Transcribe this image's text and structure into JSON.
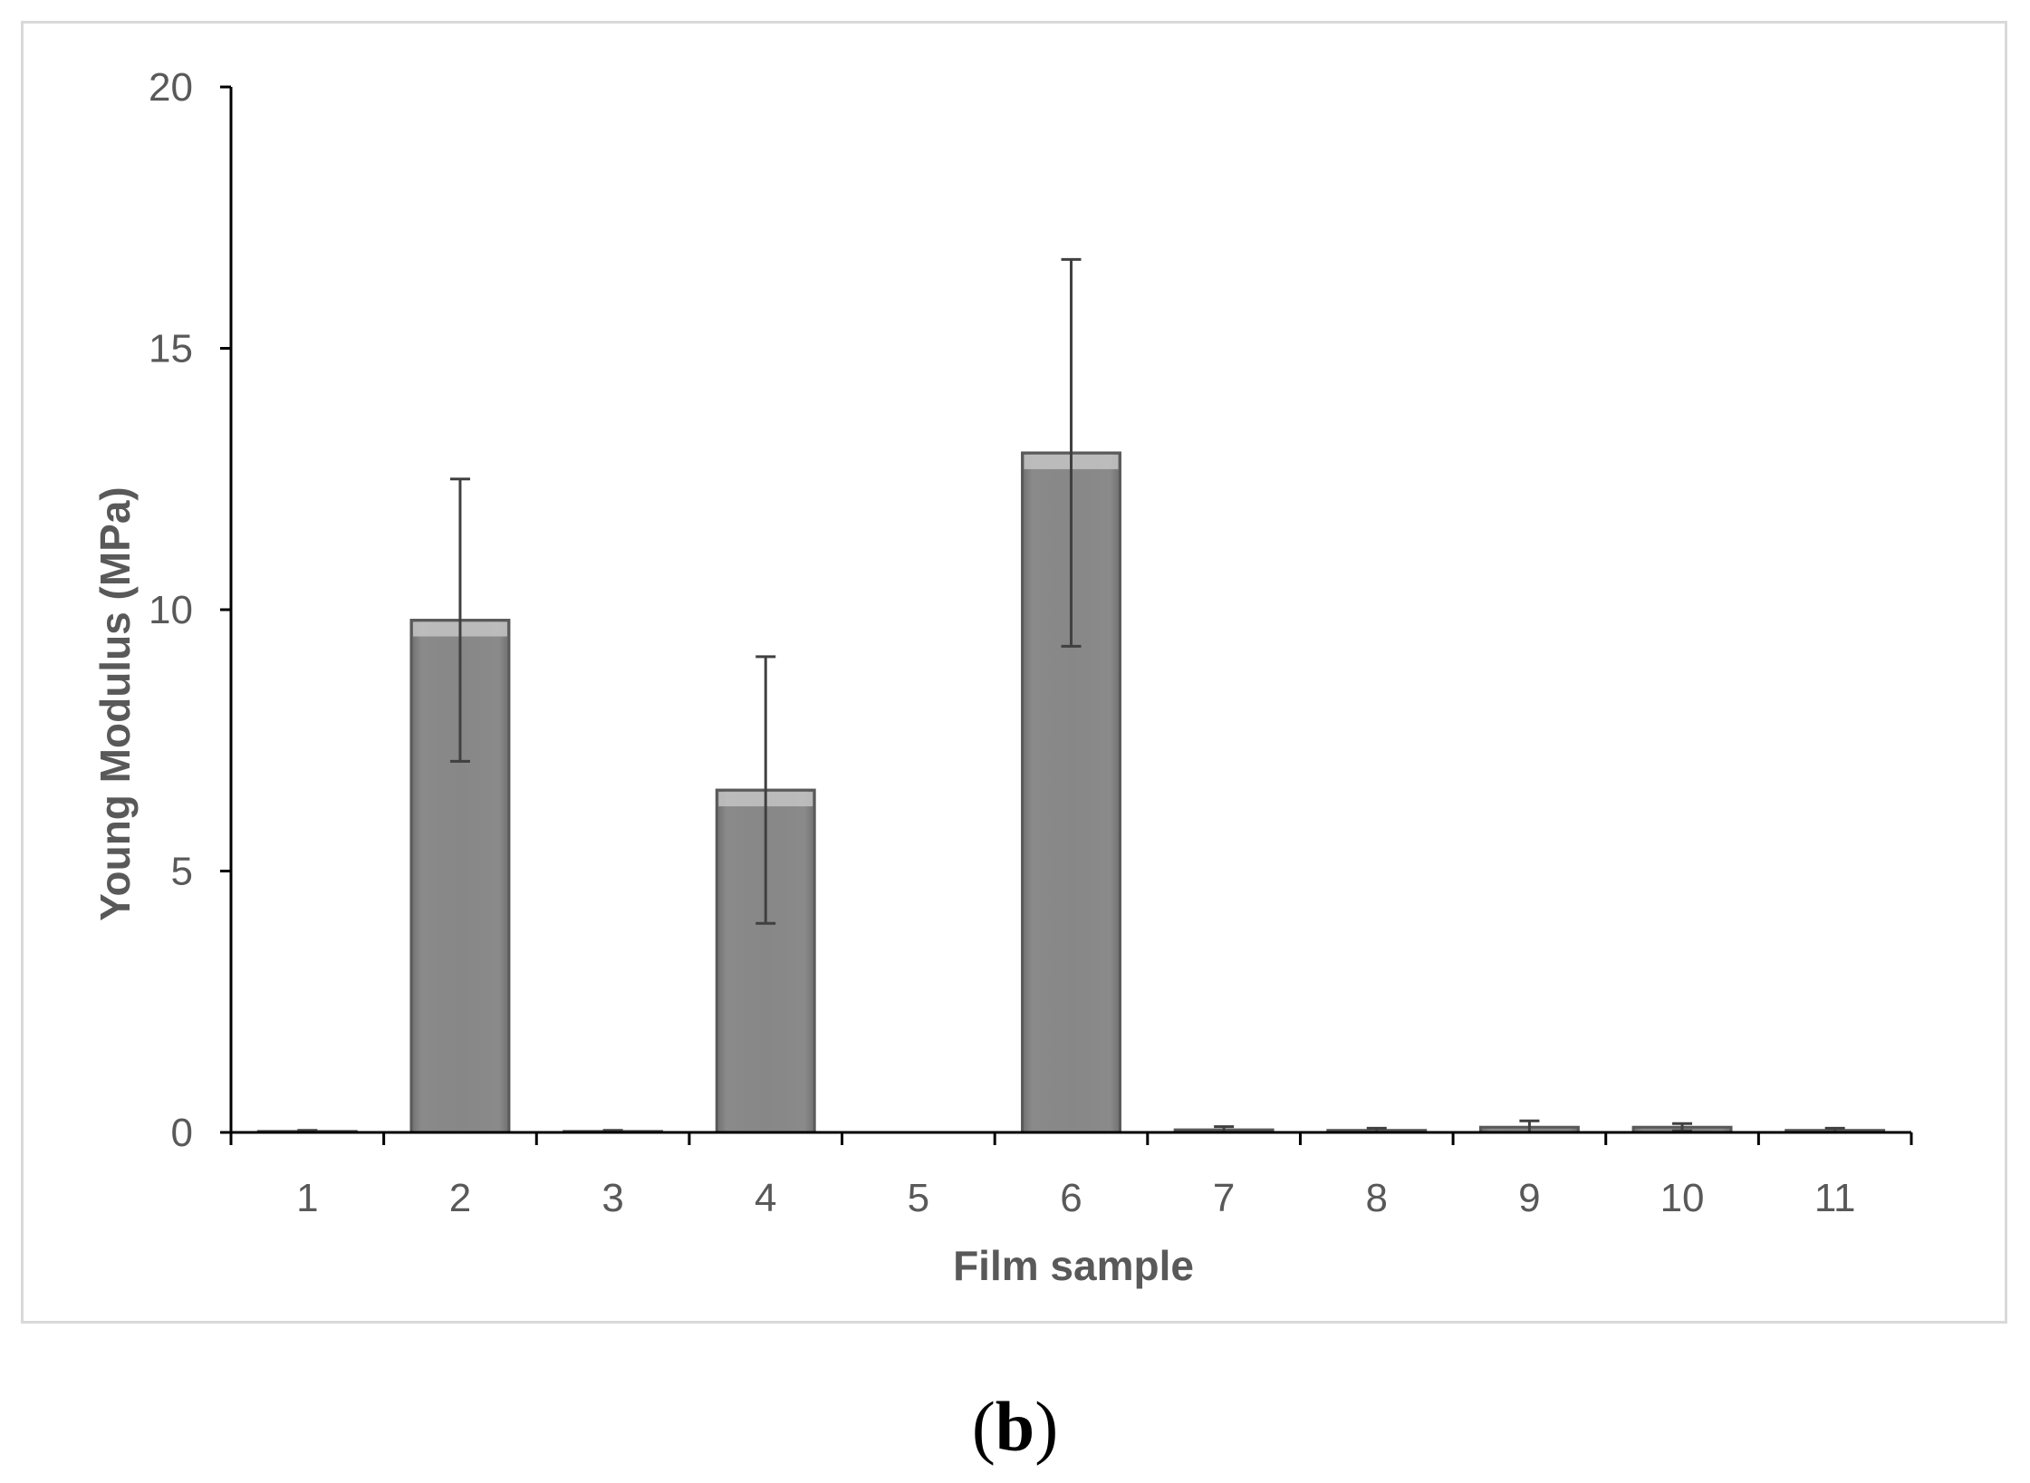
{
  "chart_data": {
    "type": "bar",
    "title": "",
    "xlabel": "Film sample",
    "ylabel": "Young Modulus (MPa)",
    "categories": [
      "1",
      "2",
      "3",
      "4",
      "5",
      "6",
      "7",
      "8",
      "9",
      "10",
      "11"
    ],
    "values": [
      0.02,
      9.8,
      0.02,
      6.55,
      0,
      13.0,
      0.05,
      0.04,
      0.1,
      0.1,
      0.04
    ],
    "errors": [
      0.02,
      2.7,
      0.02,
      2.55,
      0,
      3.7,
      0.06,
      0.04,
      0.12,
      0.07,
      0.04
    ],
    "ylim": [
      0,
      20
    ],
    "yticks": [
      0,
      5,
      10,
      15,
      20
    ],
    "grid": false,
    "bar_color": "#858585",
    "bar_edge_color": "#595959",
    "error_color": "#404040"
  },
  "panel_label": "b"
}
